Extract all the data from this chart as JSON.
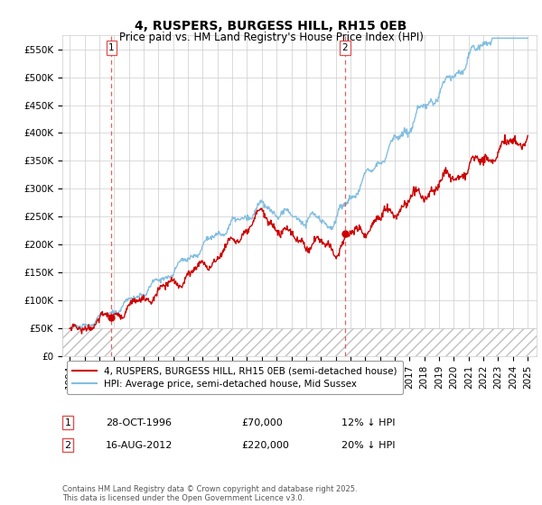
{
  "title": "4, RUSPERS, BURGESS HILL, RH15 0EB",
  "subtitle": "Price paid vs. HM Land Registry's House Price Index (HPI)",
  "ylabel_ticks": [
    "£0",
    "£50K",
    "£100K",
    "£150K",
    "£200K",
    "£250K",
    "£300K",
    "£350K",
    "£400K",
    "£450K",
    "£500K",
    "£550K"
  ],
  "ytick_values": [
    0,
    50000,
    100000,
    150000,
    200000,
    250000,
    300000,
    350000,
    400000,
    450000,
    500000,
    550000
  ],
  "ylim": [
    0,
    575000
  ],
  "xlim_start": 1993.5,
  "xlim_end": 2025.6,
  "sale1_year": 1996.83,
  "sale1_price": 70000,
  "sale1_label": "1",
  "sale2_year": 2012.62,
  "sale2_price": 220000,
  "sale2_label": "2",
  "hpi_color": "#82bfe0",
  "price_color": "#cc0000",
  "vline_color": "#e05050",
  "grid_color": "#cccccc",
  "bg_color": "#ffffff",
  "legend_label1": "4, RUSPERS, BURGESS HILL, RH15 0EB (semi-detached house)",
  "legend_label2": "HPI: Average price, semi-detached house, Mid Sussex",
  "annotation1_date": "28-OCT-1996",
  "annotation1_price": "£70,000",
  "annotation1_hpi": "12% ↓ HPI",
  "annotation2_date": "16-AUG-2012",
  "annotation2_price": "£220,000",
  "annotation2_hpi": "20% ↓ HPI",
  "footnote": "Contains HM Land Registry data © Crown copyright and database right 2025.\nThis data is licensed under the Open Government Licence v3.0.",
  "title_fontsize": 10,
  "subtitle_fontsize": 8.5,
  "tick_fontsize": 7.5,
  "legend_fontsize": 7.5,
  "annotation_fontsize": 8
}
